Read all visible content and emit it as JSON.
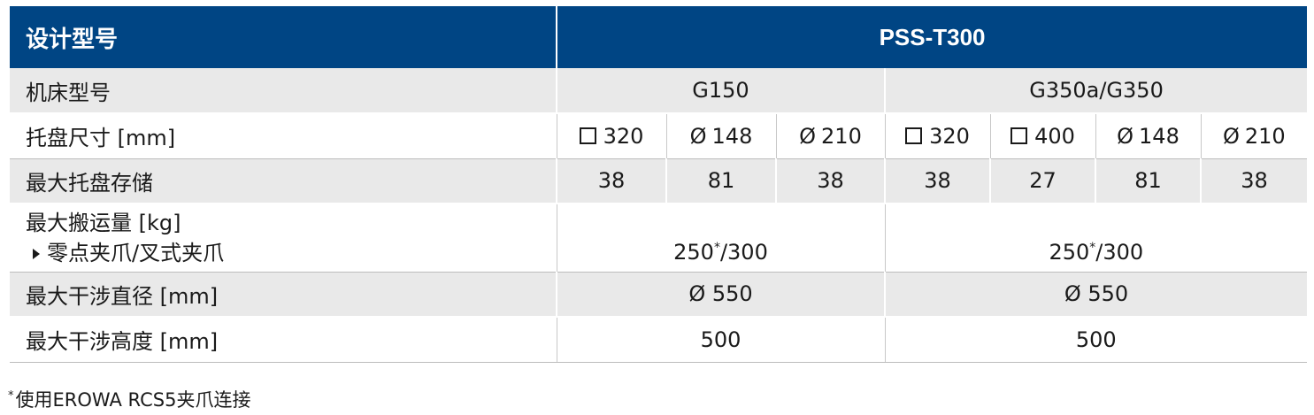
{
  "header": {
    "label": "设计型号",
    "model": "PSS-T300"
  },
  "rows": {
    "machine": {
      "label": "机床型号",
      "g150": "G150",
      "g350": "G350a/G350"
    },
    "pallet_size": {
      "label": "托盘尺寸 [mm]",
      "cells": [
        {
          "shape": "square",
          "value": "320"
        },
        {
          "shape": "diameter",
          "value": "148"
        },
        {
          "shape": "diameter",
          "value": "210"
        },
        {
          "shape": "square",
          "value": "320"
        },
        {
          "shape": "square",
          "value": "400"
        },
        {
          "shape": "diameter",
          "value": "148"
        },
        {
          "shape": "diameter",
          "value": "210"
        }
      ],
      "phi": "Ø"
    },
    "max_storage": {
      "label": "最大托盘存储",
      "values": [
        "38",
        "81",
        "38",
        "38",
        "27",
        "81",
        "38"
      ]
    },
    "max_payload": {
      "label_line1": "最大搬运量 [kg]",
      "label_line2": "零点夹爪/叉式夹爪",
      "g150_pre": "250",
      "g150_sup": "*",
      "g150_post": "/300",
      "g350_pre": "250",
      "g350_sup": "*",
      "g350_post": "/300"
    },
    "max_diameter": {
      "label": "最大干涉直径 [mm]",
      "g150": "Ø 550",
      "g350": "Ø 550"
    },
    "max_height": {
      "label": "最大干涉高度 [mm]",
      "g150": "500",
      "g350": "500"
    }
  },
  "footnote": {
    "mark": "*",
    "text": "使用EROWA RCS5夹爪连接"
  },
  "colors": {
    "header_bg": "#004584",
    "gray_row": "#e9e9e9"
  }
}
